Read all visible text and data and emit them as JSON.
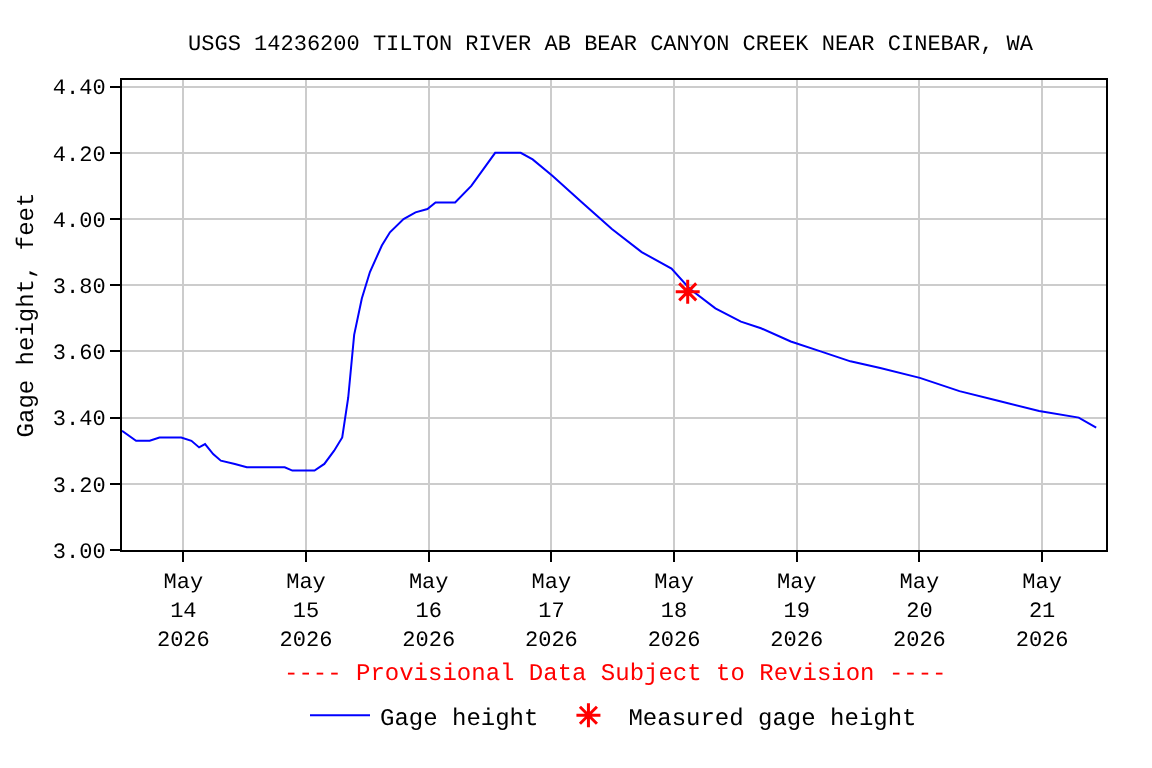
{
  "chart_data": {
    "type": "line",
    "title": "USGS 14236200 TILTON RIVER AB BEAR CANYON CREEK NEAR CINEBAR, WA",
    "ylabel": "Gage height, feet",
    "annotations": [
      "---- Provisional Data Subject to Revision ----"
    ],
    "xlim": [
      "2026-05-13T12:00",
      "2026-05-21T12:30"
    ],
    "xticks": [
      {
        "value": "2026-05-14",
        "label": "May\n14\n2026"
      },
      {
        "value": "2026-05-15",
        "label": "May\n15\n2026"
      },
      {
        "value": "2026-05-16",
        "label": "May\n16\n2026"
      },
      {
        "value": "2026-05-17",
        "label": "May\n17\n2026"
      },
      {
        "value": "2026-05-18",
        "label": "May\n18\n2026"
      },
      {
        "value": "2026-05-19",
        "label": "May\n19\n2026"
      },
      {
        "value": "2026-05-20",
        "label": "May\n20\n2026"
      },
      {
        "value": "2026-05-21",
        "label": "May\n21\n2026"
      }
    ],
    "ylim": [
      3.0,
      4.42
    ],
    "yticks": [
      {
        "value": 3.0,
        "label": "3.00"
      },
      {
        "value": 3.2,
        "label": "3.20"
      },
      {
        "value": 3.4,
        "label": "3.40"
      },
      {
        "value": 3.6,
        "label": "3.60"
      },
      {
        "value": 3.8,
        "label": "3.80"
      },
      {
        "value": 4.0,
        "label": "4.00"
      },
      {
        "value": 4.2,
        "label": "4.20"
      },
      {
        "value": 4.4,
        "label": "4.40"
      }
    ],
    "grid": true,
    "legend": "bottom",
    "series": [
      {
        "name": "Gage height",
        "marker": "none",
        "color": "#0000ff",
        "x": [
          "2026-05-13T12:00",
          "2026-05-13T14:45",
          "2026-05-13T17:25",
          "2026-05-13T19:20",
          "2026-05-13T23:35",
          "2026-05-14T01:35",
          "2026-05-14T03:05",
          "2026-05-14T04:15",
          "2026-05-14T05:50",
          "2026-05-14T07:20",
          "2026-05-14T10:05",
          "2026-05-14T12:25",
          "2026-05-14T19:50",
          "2026-05-14T21:20",
          "2026-05-15T01:40",
          "2026-05-15T03:35",
          "2026-05-15T05:30",
          "2026-05-15T07:05",
          "2026-05-15T08:15",
          "2026-05-15T09:25",
          "2026-05-15T10:55",
          "2026-05-15T12:30",
          "2026-05-15T14:50",
          "2026-05-15T16:25",
          "2026-05-15T19:05",
          "2026-05-15T21:25",
          "2026-05-15T23:45",
          "2026-05-16T01:20",
          "2026-05-16T05:10",
          "2026-05-16T08:20",
          "2026-05-16T10:40",
          "2026-05-16T13:00",
          "2026-05-16T18:00",
          "2026-05-16T20:20",
          "2026-05-17T00:15",
          "2026-05-17T06:00",
          "2026-05-17T11:50",
          "2026-05-17T17:40",
          "2026-05-17T23:30",
          "2026-05-18T03:00",
          "2026-05-18T08:05",
          "2026-05-18T13:05",
          "2026-05-18T17:00",
          "2026-05-18T22:50",
          "2026-05-19T04:40",
          "2026-05-19T10:30",
          "2026-05-19T16:20",
          "2026-05-20T00:05",
          "2026-05-20T07:50",
          "2026-05-20T15:35",
          "2026-05-20T23:25",
          "2026-05-21T07:10",
          "2026-05-21T10:35"
        ],
        "values": [
          3.36,
          3.33,
          3.33,
          3.34,
          3.34,
          3.33,
          3.31,
          3.32,
          3.29,
          3.27,
          3.26,
          3.25,
          3.25,
          3.24,
          3.24,
          3.26,
          3.3,
          3.34,
          3.46,
          3.65,
          3.76,
          3.84,
          3.92,
          3.96,
          4.0,
          4.02,
          4.03,
          4.05,
          4.05,
          4.1,
          4.15,
          4.2,
          4.2,
          4.18,
          4.13,
          4.05,
          3.97,
          3.9,
          3.85,
          3.79,
          3.73,
          3.69,
          3.67,
          3.63,
          3.6,
          3.57,
          3.55,
          3.52,
          3.48,
          3.45,
          3.42,
          3.4,
          3.37
        ]
      },
      {
        "name": "Measured gage height",
        "type": "scatter",
        "marker": "cross",
        "color": "#ff0000",
        "x": [
          "2026-05-18T02:40"
        ],
        "values": [
          3.78
        ]
      }
    ]
  }
}
